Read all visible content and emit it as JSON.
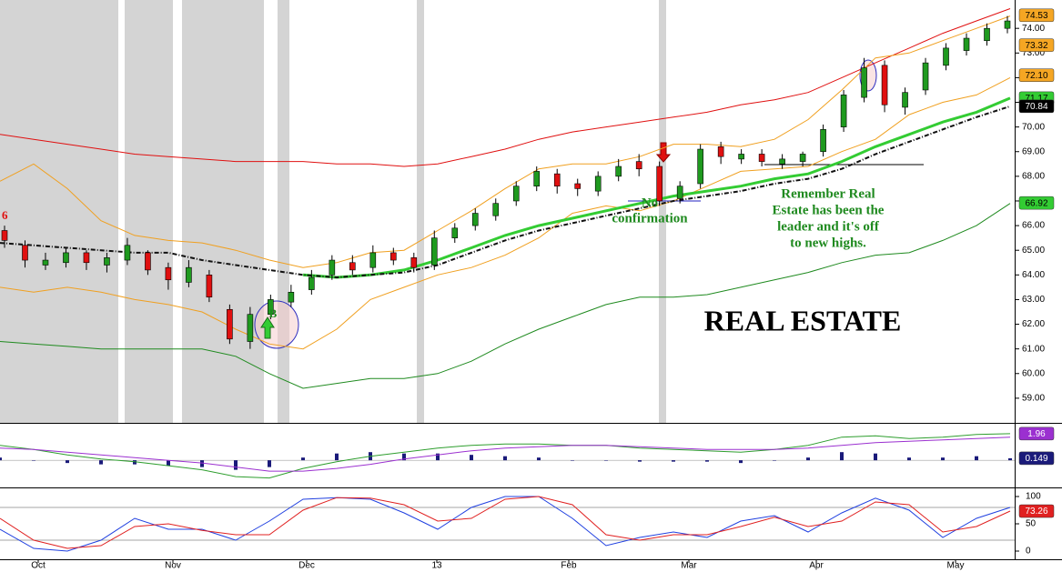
{
  "chart_data": [
    {
      "type": "candlestick",
      "ylim": [
        58,
        75.15
      ],
      "yticks": [
        {
          "value": 74,
          "label": "74.00"
        },
        {
          "value": 73,
          "label": "73.00"
        },
        {
          "value": 72,
          "label": "72.00"
        },
        {
          "value": 71,
          "label": "71.00"
        },
        {
          "value": 70,
          "label": "70.00"
        },
        {
          "value": 69,
          "label": "69.00"
        },
        {
          "value": 68,
          "label": "68.00"
        },
        {
          "value": 67,
          "label": "67.00"
        },
        {
          "value": 66,
          "label": "66.00"
        },
        {
          "value": 65,
          "label": "65.00"
        },
        {
          "value": 64,
          "label": "64.00"
        },
        {
          "value": 63,
          "label": "63.00"
        },
        {
          "value": 62,
          "label": "62.00"
        },
        {
          "value": 61,
          "label": "61.00"
        },
        {
          "value": 60,
          "label": "60.00"
        },
        {
          "value": 59,
          "label": "59.00"
        }
      ],
      "up_color": "#1f9a1f",
      "down_color": "#e01010",
      "open": [
        65.8,
        65.2,
        64.4,
        64.5,
        64.9,
        64.4,
        64.6,
        64.9,
        64.3,
        63.7,
        64.0,
        62.6,
        61.3,
        62.4,
        62.9,
        63.4,
        64.0,
        64.5,
        64.3,
        64.9,
        64.7,
        64.4,
        65.5,
        66.0,
        66.4,
        67.0,
        67.6,
        68.1,
        67.7,
        67.4,
        68.0,
        68.6,
        68.4,
        67.1,
        67.7,
        69.2,
        68.7,
        68.9,
        68.5,
        68.6,
        69.0,
        70.0,
        71.2,
        72.5,
        70.8,
        71.5,
        72.5,
        73.1,
        73.5,
        74.0
      ],
      "high": [
        66.0,
        65.4,
        64.9,
        65.1,
        65.0,
        64.9,
        65.5,
        65.0,
        64.5,
        64.6,
        64.2,
        62.8,
        62.7,
        63.2,
        63.6,
        64.2,
        64.8,
        64.8,
        65.2,
        65.1,
        64.9,
        65.8,
        66.1,
        66.7,
        67.1,
        67.8,
        68.4,
        68.3,
        67.9,
        68.2,
        68.7,
        68.9,
        68.6,
        67.8,
        69.3,
        69.4,
        69.1,
        69.1,
        68.9,
        69.0,
        70.1,
        71.5,
        72.8,
        72.7,
        71.6,
        72.8,
        73.4,
        73.8,
        74.2,
        74.5
      ],
      "low": [
        65.1,
        64.3,
        64.2,
        64.3,
        64.2,
        64.1,
        64.4,
        64.0,
        63.4,
        63.5,
        62.9,
        61.2,
        61.0,
        62.2,
        62.7,
        63.2,
        63.8,
        64.0,
        64.1,
        64.4,
        64.1,
        64.2,
        65.3,
        65.8,
        66.2,
        66.8,
        67.4,
        67.3,
        67.2,
        67.2,
        67.8,
        68.0,
        66.8,
        66.9,
        67.5,
        68.5,
        68.5,
        68.4,
        68.3,
        68.4,
        68.8,
        69.8,
        71.0,
        70.6,
        70.5,
        71.3,
        72.3,
        72.9,
        73.3,
        73.8
      ],
      "close": [
        65.4,
        64.6,
        64.6,
        64.9,
        64.5,
        64.7,
        65.2,
        64.2,
        63.8,
        64.3,
        63.1,
        61.4,
        62.4,
        63.0,
        63.3,
        63.9,
        64.6,
        64.2,
        64.9,
        64.6,
        64.3,
        65.5,
        65.9,
        66.5,
        66.9,
        67.6,
        68.2,
        67.6,
        67.5,
        68.0,
        68.4,
        68.3,
        67.0,
        67.6,
        69.1,
        68.8,
        68.9,
        68.6,
        68.7,
        68.9,
        69.9,
        71.3,
        72.4,
        70.9,
        71.4,
        72.6,
        73.2,
        73.6,
        74.0,
        74.3
      ],
      "series": [
        {
          "color": "#e01010",
          "values": [
            69.7,
            69.5,
            69.3,
            69.1,
            68.9,
            68.8,
            68.7,
            68.6,
            68.6,
            68.6,
            68.5,
            68.5,
            68.4,
            68.5,
            68.8,
            69.1,
            69.5,
            69.8,
            70.0,
            70.2,
            70.4,
            70.6,
            70.9,
            71.1,
            71.4,
            72.0,
            72.6,
            73.2,
            73.8,
            74.3,
            74.8
          ]
        },
        {
          "color": "#f0a020",
          "values": [
            67.8,
            68.5,
            67.5,
            66.2,
            65.6,
            65.4,
            65.3,
            65.0,
            64.6,
            64.3,
            64.5,
            64.9,
            65.0,
            65.8,
            66.6,
            67.5,
            68.3,
            68.5,
            68.5,
            68.8,
            69.3,
            69.3,
            69.2,
            69.5,
            70.3,
            71.5,
            72.8,
            73.0,
            73.5,
            74.0,
            74.5
          ]
        },
        {
          "color": "#f0a020",
          "values": [
            63.5,
            63.3,
            63.5,
            63.3,
            63.0,
            62.8,
            62.5,
            61.8,
            61.2,
            61.0,
            61.8,
            63.0,
            63.5,
            64.0,
            64.3,
            64.8,
            65.5,
            66.5,
            66.8,
            66.6,
            67.0,
            67.6,
            68.2,
            68.3,
            68.4,
            69.0,
            69.5,
            70.5,
            71.0,
            71.3,
            72.0
          ]
        },
        {
          "color": "#1f8a1f",
          "values": [
            61.3,
            61.2,
            61.1,
            61.0,
            61.0,
            61.0,
            61.0,
            60.7,
            60.0,
            59.4,
            59.6,
            59.8,
            59.8,
            60.0,
            60.5,
            61.2,
            61.8,
            62.3,
            62.8,
            63.1,
            63.1,
            63.2,
            63.5,
            63.8,
            64.1,
            64.5,
            64.8,
            64.9,
            65.4,
            66.0,
            66.9
          ]
        },
        {
          "color": "#33cc33",
          "bold": true,
          "values": [
            null,
            null,
            null,
            null,
            null,
            null,
            null,
            null,
            null,
            64.0,
            63.9,
            64.0,
            64.2,
            64.6,
            65.1,
            65.6,
            66.0,
            66.3,
            66.6,
            66.9,
            67.2,
            67.4,
            67.6,
            67.9,
            68.1,
            68.6,
            69.2,
            69.7,
            70.2,
            70.6,
            71.17
          ]
        },
        {
          "color": "#111111",
          "dashed": true,
          "values": [
            65.3,
            65.2,
            65.1,
            65.0,
            64.9,
            64.9,
            64.6,
            64.4,
            64.2,
            64.0,
            63.9,
            64.0,
            64.1,
            64.4,
            64.9,
            65.4,
            65.8,
            66.1,
            66.4,
            66.7,
            67.0,
            67.2,
            67.4,
            67.7,
            67.9,
            68.3,
            68.9,
            69.4,
            69.9,
            70.4,
            70.84
          ]
        }
      ],
      "markers": [
        {
          "value": 74.53,
          "label": "74.53",
          "color": "#f5a623"
        },
        {
          "value": 73.32,
          "label": "73.32",
          "color": "#f5a623"
        },
        {
          "value": 72.1,
          "label": "72.10",
          "color": "#f5a623"
        },
        {
          "value": 71.17,
          "label": "71.17",
          "color": "#33cc33"
        },
        {
          "value": 70.84,
          "label": "70.84",
          "color": "#000000"
        },
        {
          "value": 66.92,
          "label": "66.92",
          "color": "#33cc33"
        }
      ],
      "annotations": [
        "6",
        "B",
        "No",
        "confirmation",
        "Remember Real",
        "Estate has been the",
        "leader and it's off",
        "to new highs.",
        "REAL ESTATE"
      ]
    },
    {
      "type": "line",
      "ylim": [
        -1.93,
        2.62
      ],
      "series": [
        {
          "type": "bar",
          "color": "#1a1a7a",
          "values": [
            0.2,
            0.0,
            -0.2,
            -0.3,
            -0.3,
            -0.4,
            -0.5,
            -0.7,
            -0.5,
            0.2,
            0.5,
            0.6,
            0.5,
            0.5,
            0.4,
            0.3,
            0.2,
            0.0,
            0.0,
            -0.1,
            -0.1,
            -0.1,
            -0.2,
            0.0,
            0.2,
            0.6,
            0.5,
            0.2,
            0.2,
            0.3,
            0.149
          ]
        },
        {
          "color": "#2e9e2e",
          "values": [
            1.1,
            0.8,
            0.4,
            0.1,
            -0.1,
            -0.4,
            -0.7,
            -1.2,
            -1.3,
            -0.6,
            -0.1,
            0.3,
            0.6,
            0.9,
            1.1,
            1.2,
            1.2,
            1.1,
            1.1,
            0.9,
            0.8,
            0.7,
            0.6,
            0.8,
            1.1,
            1.7,
            1.8,
            1.6,
            1.7,
            1.9,
            1.96
          ]
        },
        {
          "color": "#9b30d0",
          "values": [
            0.9,
            0.8,
            0.6,
            0.4,
            0.2,
            0.0,
            -0.2,
            -0.5,
            -0.8,
            -0.8,
            -0.6,
            -0.3,
            0.1,
            0.4,
            0.7,
            0.9,
            1.0,
            1.1,
            1.1,
            1.0,
            0.9,
            0.8,
            0.8,
            0.8,
            0.9,
            1.1,
            1.3,
            1.4,
            1.5,
            1.6,
            1.7
          ]
        }
      ],
      "markers": [
        {
          "value": 1.96,
          "label": "1.96",
          "color": "#9b30d0"
        },
        {
          "value": 0.149,
          "label": "0.149",
          "color": "#1a1a7a"
        }
      ]
    },
    {
      "type": "line",
      "ylim": [
        -15,
        115
      ],
      "yticks": [
        100,
        50,
        0
      ],
      "guides": [
        80,
        20
      ],
      "series": [
        {
          "color": "#2040e0",
          "values": [
            40,
            5,
            0,
            20,
            60,
            40,
            40,
            20,
            55,
            95,
            98,
            95,
            70,
            40,
            80,
            100,
            100,
            60,
            10,
            25,
            35,
            25,
            55,
            65,
            35,
            70,
            97,
            75,
            25,
            60,
            80
          ]
        },
        {
          "color": "#e02020",
          "values": [
            60,
            20,
            5,
            10,
            45,
            50,
            38,
            30,
            30,
            75,
            98,
            97,
            85,
            55,
            60,
            95,
            100,
            85,
            30,
            20,
            30,
            30,
            45,
            62,
            45,
            55,
            90,
            85,
            35,
            45,
            73.26
          ]
        }
      ],
      "markers": [
        {
          "value": 73.26,
          "label": "73.26",
          "color": "#e02020"
        }
      ],
      "x_labels": [
        "Oct",
        "Nov",
        "Dec",
        "13",
        "Feb",
        "Mar",
        "Apr",
        "May"
      ]
    }
  ]
}
